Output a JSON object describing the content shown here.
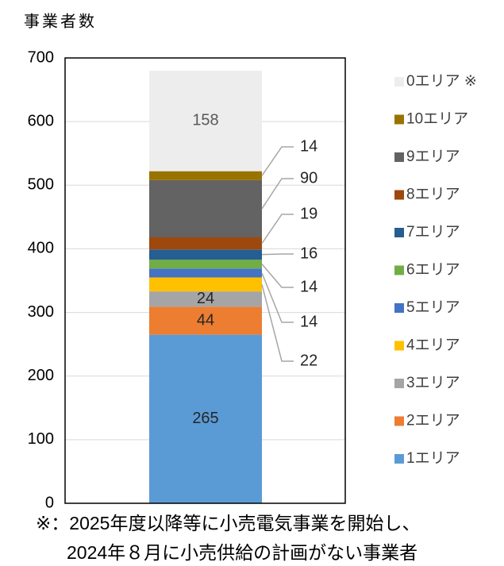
{
  "chart_data": {
    "type": "stacked_bar",
    "y_axis_label": "事業者数",
    "categories": [
      null
    ],
    "ylim": [
      0,
      700
    ],
    "yticks": [
      0,
      100,
      200,
      300,
      400,
      500,
      600,
      700
    ],
    "grid": true,
    "series": [
      {
        "name": "1エリア",
        "color": "#5b9bd5",
        "values": [
          265
        ],
        "label": "inside"
      },
      {
        "name": "2エリア",
        "color": "#ed7d31",
        "values": [
          44
        ],
        "label": "inside"
      },
      {
        "name": "3エリア",
        "color": "#a5a5a5",
        "values": [
          24
        ],
        "label": "inside"
      },
      {
        "name": "4エリア",
        "color": "#ffc000",
        "values": [
          22
        ],
        "label": "outside"
      },
      {
        "name": "5エリア",
        "color": "#4472c4",
        "values": [
          14
        ],
        "label": "outside"
      },
      {
        "name": "6エリア",
        "color": "#70ad47",
        "values": [
          14
        ],
        "label": "outside"
      },
      {
        "name": "7エリア",
        "color": "#255e91",
        "values": [
          16
        ],
        "label": "outside"
      },
      {
        "name": "8エリア",
        "color": "#9e480e",
        "values": [
          19
        ],
        "label": "outside"
      },
      {
        "name": "9エリア",
        "color": "#636363",
        "values": [
          90
        ],
        "label": "outside"
      },
      {
        "name": "10エリア",
        "color": "#997300",
        "values": [
          14
        ],
        "label": "outside"
      },
      {
        "name": "0エリア ※",
        "color": "#ededed",
        "values": [
          158
        ],
        "label": "inside"
      }
    ],
    "footnote": [
      "※：2025年度以降等に小売電気事業を開始し、",
      "2024年８月に小売供給の計画がない事業者"
    ]
  }
}
